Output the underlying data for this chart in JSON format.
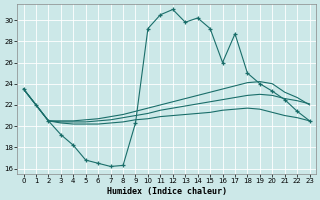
{
  "xlabel": "Humidex (Indice chaleur)",
  "xlim": [
    -0.5,
    23.5
  ],
  "ylim": [
    15.5,
    31.5
  ],
  "xticks": [
    0,
    1,
    2,
    3,
    4,
    5,
    6,
    7,
    8,
    9,
    10,
    11,
    12,
    13,
    14,
    15,
    16,
    17,
    18,
    19,
    20,
    21,
    22,
    23
  ],
  "yticks": [
    16,
    18,
    20,
    22,
    24,
    26,
    28,
    30
  ],
  "bg_color": "#cce8e8",
  "line_color": "#1a6e6a",
  "grid_color": "#ffffff",
  "line_jagged_y": [
    23.5,
    22.0,
    20.5,
    19.2,
    18.2,
    16.8,
    16.5,
    16.2,
    16.3,
    20.3,
    29.2,
    30.5,
    31.0,
    29.8,
    30.2,
    29.2,
    26.0,
    28.7,
    25.0,
    24.0,
    23.3,
    22.5,
    21.4,
    20.5
  ],
  "line_upper_y": [
    23.5,
    22.0,
    20.5,
    20.5,
    20.5,
    20.6,
    20.7,
    20.9,
    21.1,
    21.4,
    21.7,
    22.0,
    22.3,
    22.6,
    22.9,
    23.2,
    23.5,
    23.8,
    24.1,
    24.2,
    24.0,
    23.2,
    22.7,
    22.0
  ],
  "line_mid_y": [
    23.5,
    22.0,
    20.5,
    20.4,
    20.4,
    20.4,
    20.5,
    20.6,
    20.8,
    21.0,
    21.2,
    21.5,
    21.7,
    21.9,
    22.1,
    22.3,
    22.5,
    22.7,
    22.9,
    23.0,
    22.9,
    22.6,
    22.4,
    22.1
  ],
  "line_lower_y": [
    23.5,
    22.0,
    20.5,
    20.3,
    20.2,
    20.2,
    20.2,
    20.3,
    20.4,
    20.6,
    20.7,
    20.9,
    21.0,
    21.1,
    21.2,
    21.3,
    21.5,
    21.6,
    21.7,
    21.6,
    21.3,
    21.0,
    20.8,
    20.5
  ]
}
